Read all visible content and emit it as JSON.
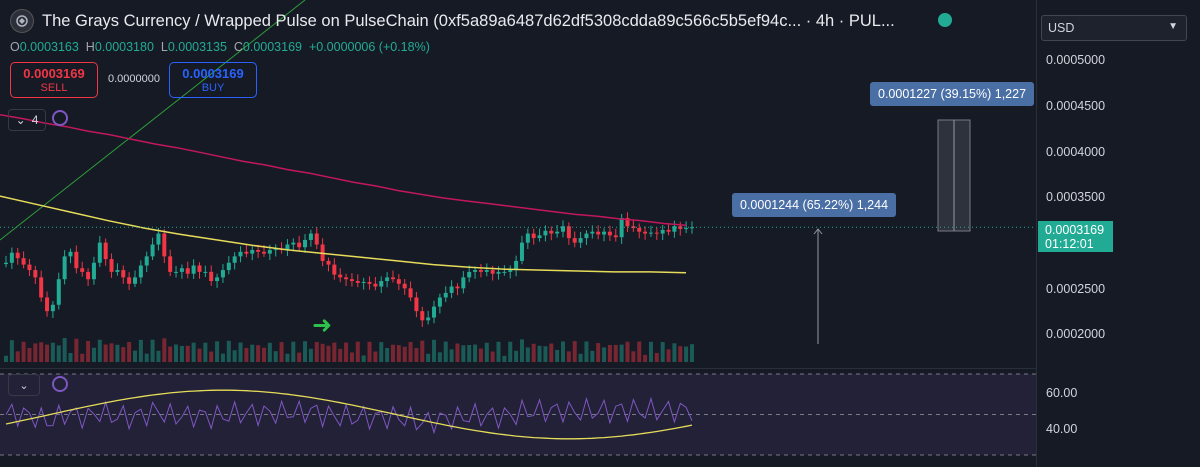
{
  "header": {
    "title": "The Grays Currency / Wrapped Pulse on PulseChain (0xf5a89a6487d62df5308cdda89c566c5b5ef94c... · 4h · PUL...",
    "logo_icon": "circle-glyph-icon",
    "status_icon": "status-dot-icon",
    "status_color": "#22ab94"
  },
  "ohlc": {
    "o_label": "O",
    "o": "0.0003163",
    "h_label": "H",
    "h": "0.0003180",
    "l_label": "L",
    "l": "0.0003135",
    "c_label": "C",
    "c": "0.0003169",
    "change": "+0.0000006 (+0.18%)"
  },
  "trade": {
    "sell_price": "0.0003169",
    "sell_label": "SELL",
    "spread": "0.0000000",
    "buy_price": "0.0003169",
    "buy_label": "BUY"
  },
  "indicators": {
    "count": "4",
    "collapse_icon": "chevron-down-icon",
    "settings_icon": "indicator-icon"
  },
  "currency": {
    "selected": "USD"
  },
  "price_axis": {
    "ticks": [
      "0.0005000",
      "0.0004500",
      "0.0004000",
      "0.0003500",
      "0.0002500",
      "0.0002000"
    ]
  },
  "current_price": {
    "value": "0.0003169",
    "countdown": "01:12:01"
  },
  "measurements": [
    {
      "label": "0.0001227 (39.15%) 1,227"
    },
    {
      "label": "0.0001244 (65.22%) 1,244"
    }
  ],
  "rsi": {
    "ticks": [
      "60.00",
      "40.00"
    ],
    "collapse_icon": "chevron-down-icon",
    "settings_icon": "indicator-icon"
  },
  "colors": {
    "up": "#22ab94",
    "down": "#f23645",
    "ma_slow": "#c2185b",
    "ma_fast": "#e6dc5a",
    "trend": "#2e9e3a",
    "rsi_line": "#7e57c2",
    "rsi_ma": "#e6dc5a",
    "measure": "#4a6fa5"
  },
  "chart_data": {
    "type": "candlestick",
    "title": "",
    "timeframe": "4h",
    "y_range": [
      0.000185,
      0.000505
    ],
    "last_close": 0.0003169,
    "closes": [
      0.000278,
      0.000289,
      0.000283,
      0.000276,
      0.00027,
      0.000262,
      0.00024,
      0.000225,
      0.000232,
      0.00026,
      0.000285,
      0.00029,
      0.000272,
      0.000268,
      0.00026,
      0.000278,
      0.0003,
      0.000282,
      0.000268,
      0.00027,
      0.000262,
      0.000255,
      0.000262,
      0.000275,
      0.000285,
      0.000298,
      0.00031,
      0.000285,
      0.000268,
      0.000268,
      0.000272,
      0.000266,
      0.000275,
      0.000268,
      0.000268,
      0.000258,
      0.000262,
      0.00027,
      0.000278,
      0.000285,
      0.00029,
      0.000288,
      0.000292,
      0.00029,
      0.000288,
      0.000292,
      0.000293,
      0.000292,
      0.000298,
      0.0003,
      0.000295,
      0.000303,
      0.00031,
      0.000298,
      0.00028,
      0.000276,
      0.000265,
      0.000262,
      0.00026,
      0.000258,
      0.000256,
      0.000257,
      0.000255,
      0.000252,
      0.000258,
      0.000262,
      0.00026,
      0.000255,
      0.00025,
      0.00024,
      0.000225,
      0.000215,
      0.000218,
      0.00023,
      0.00024,
      0.000245,
      0.000252,
      0.00025,
      0.000262,
      0.000268,
      0.00027,
      0.000268,
      0.00027,
      0.000266,
      0.000268,
      0.000268,
      0.00027,
      0.00028,
      0.0003,
      0.00031,
      0.000305,
      0.000308,
      0.000313,
      0.00031,
      0.000312,
      0.000318,
      0.000305,
      0.0003,
      0.000305,
      0.00031,
      0.000312,
      0.000309,
      0.000312,
      0.000308,
      0.000306,
      0.000327,
      0.000318,
      0.000316,
      0.000312,
      0.00031,
      0.000311,
      0.00031,
      0.000314,
      0.000312,
      0.000318,
      0.000315,
      0.000316,
      0.0003169
    ],
    "ma_slow": [
      0.00044,
      0.000436,
      0.000431,
      0.000427,
      0.000422,
      0.000418,
      0.000413,
      0.000408,
      0.000404,
      0.000399,
      0.000394,
      0.000389,
      0.000385,
      0.00038,
      0.000376,
      0.000371,
      0.000366,
      0.000362,
      0.000357,
      0.000353,
      0.000349,
      0.000346,
      0.000343,
      0.00034,
      0.000337,
      0.000334,
      0.000331,
      0.000329,
      0.000326,
      0.000324,
      0.000321,
      0.000319
    ],
    "ma_fast": [
      0.000351,
      0.000342,
      0.000333,
      0.000324,
      0.000316,
      0.000309,
      0.000303,
      0.000297,
      0.000292,
      0.000288,
      0.000284,
      0.00028,
      0.000276,
      0.000273,
      0.000271,
      0.00027,
      0.000269,
      0.000268,
      0.000268,
      0.000267
    ],
    "rsi_range": [
      26,
      72
    ],
    "rsi_levels": [
      70,
      50,
      30
    ]
  }
}
